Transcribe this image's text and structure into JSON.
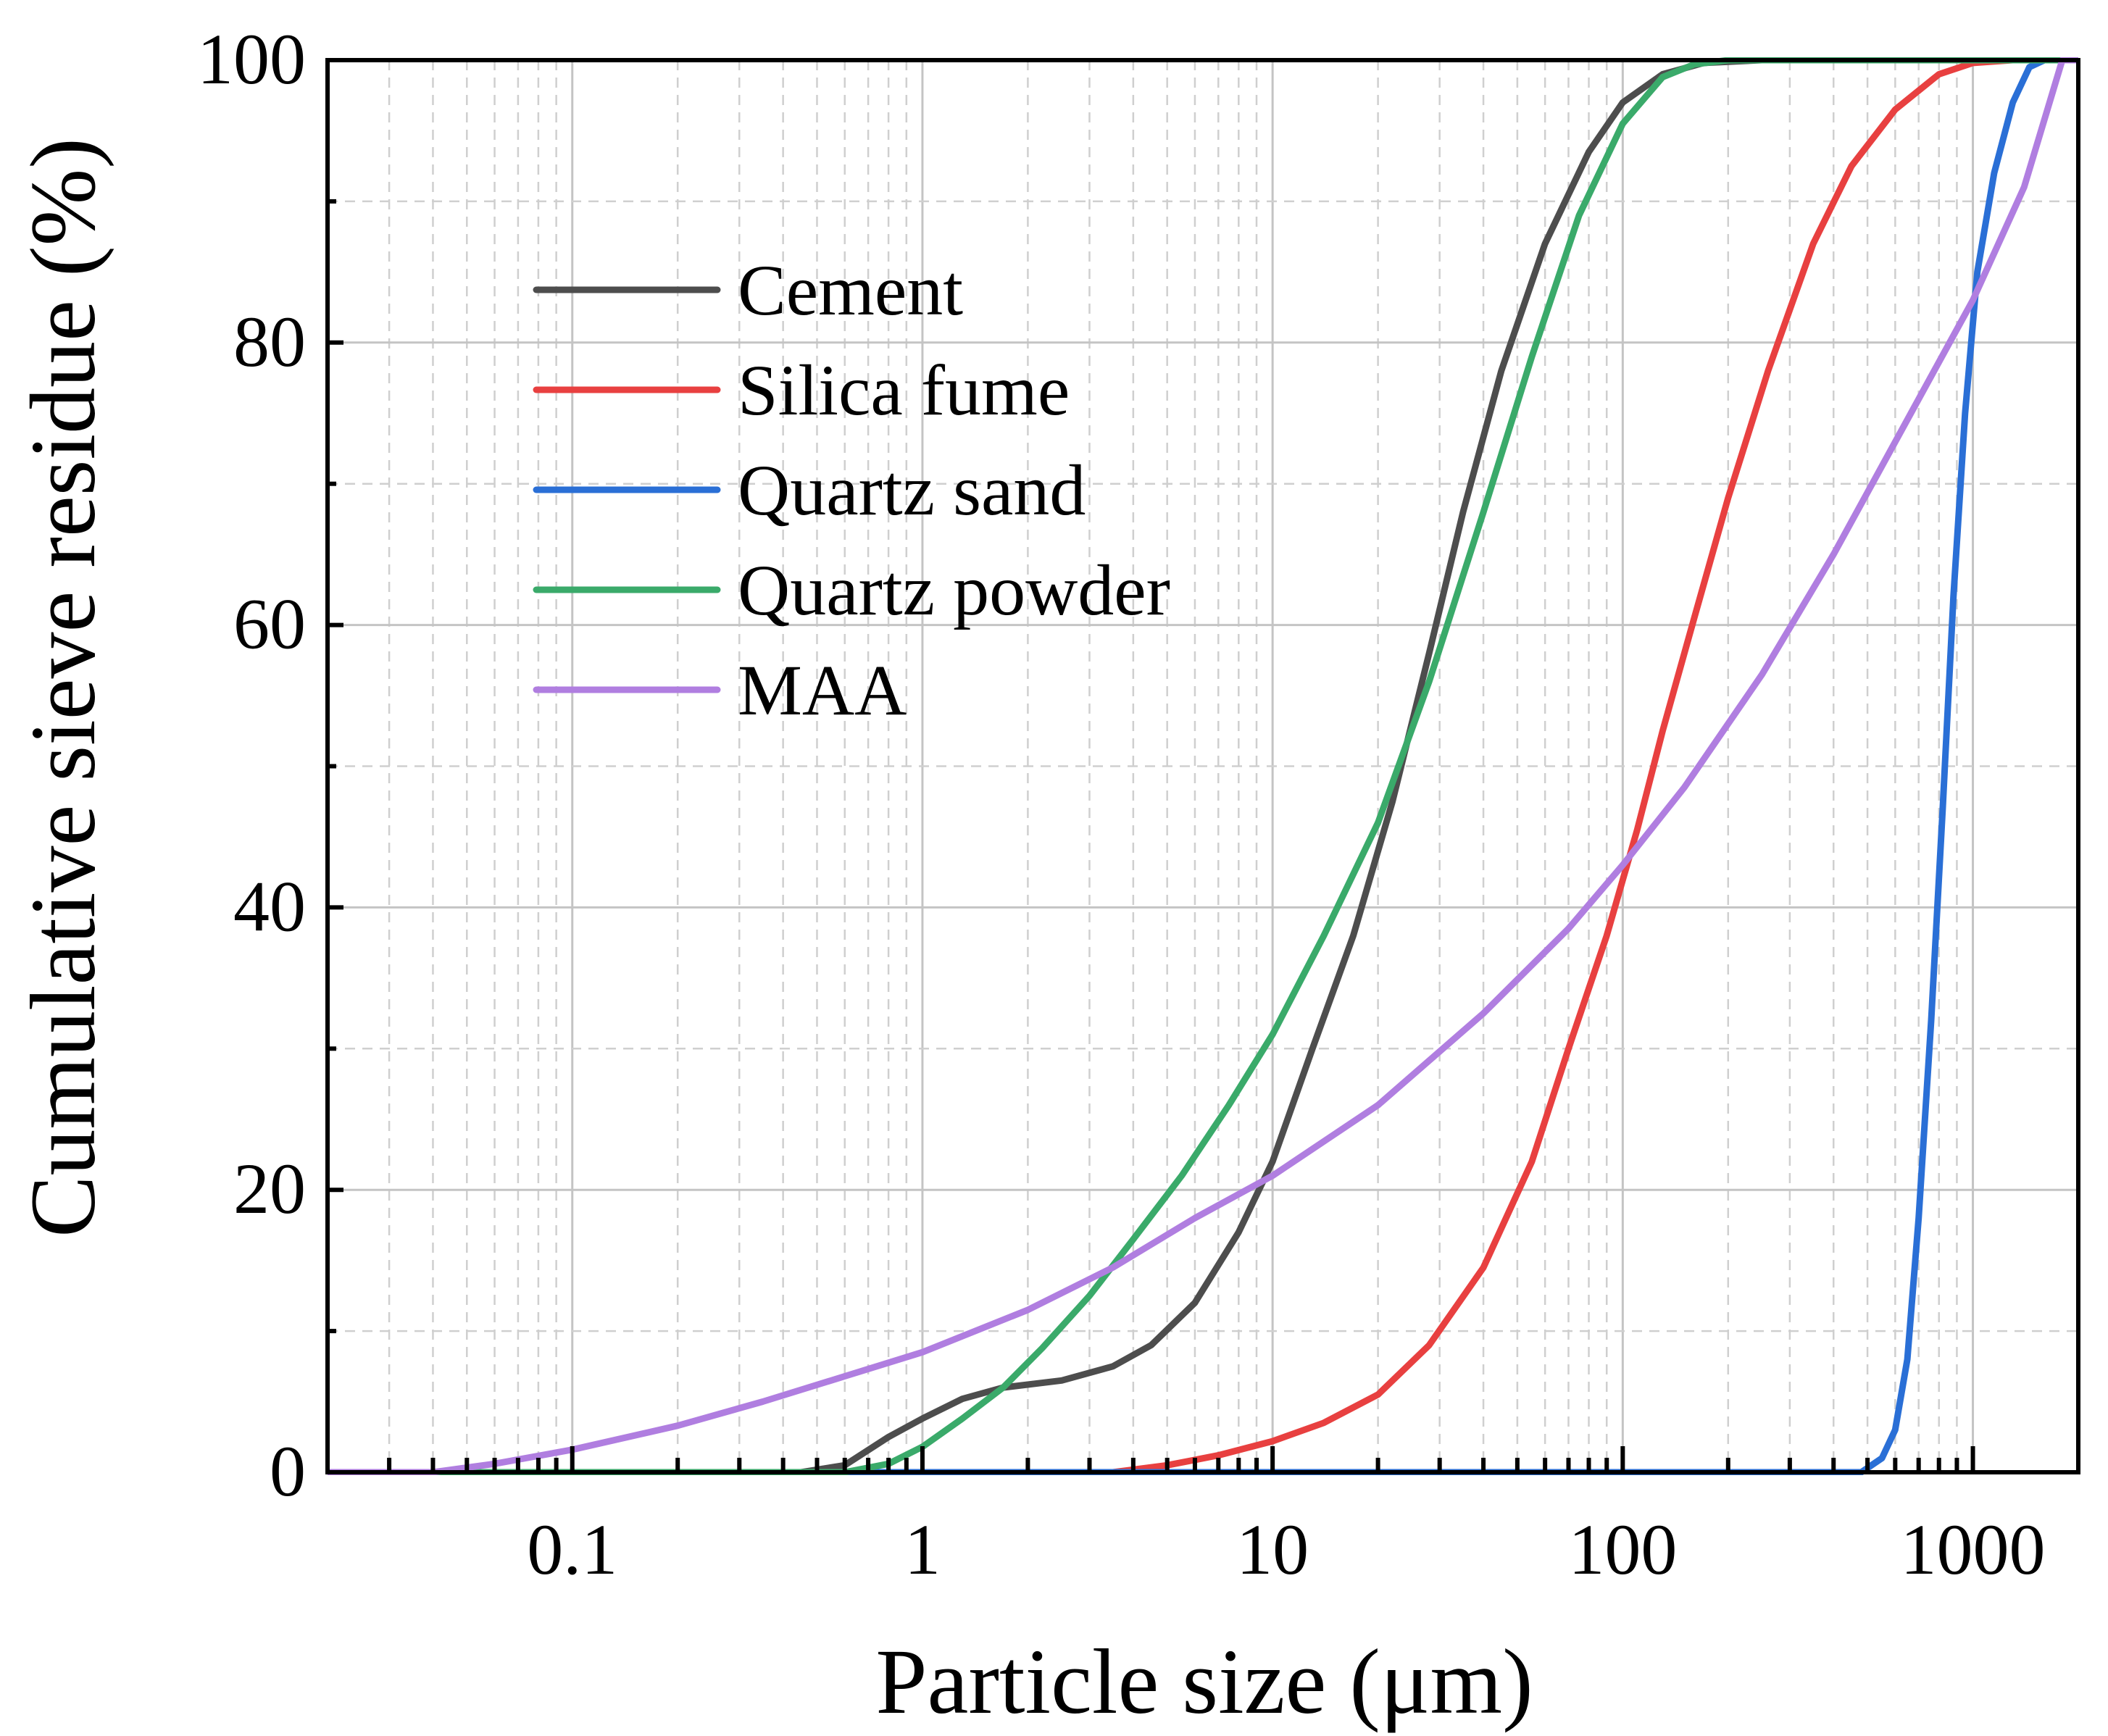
{
  "chart_data": {
    "type": "line",
    "title": "",
    "xlabel": "Particle size (μm)",
    "ylabel": "Cumulative sieve residue (%)",
    "xscale": "log",
    "xlim": [
      0.02,
      2000
    ],
    "ylim": [
      0,
      100
    ],
    "x_tick_values": [
      0.1,
      1,
      10,
      100,
      1000
    ],
    "x_tick_labels": [
      "0.1",
      "1",
      "10",
      "100",
      "1000"
    ],
    "y_tick_values": [
      0,
      20,
      40,
      60,
      80,
      100
    ],
    "y_tick_labels": [
      "0",
      "20",
      "40",
      "60",
      "80",
      "100"
    ],
    "grid": true,
    "legend_position": "upper-left",
    "series": [
      {
        "name": "Cement",
        "color": "#4d4d4d",
        "points": [
          [
            0.02,
            0
          ],
          [
            0.45,
            0
          ],
          [
            0.6,
            0.5
          ],
          [
            0.8,
            2.5
          ],
          [
            1.0,
            3.8
          ],
          [
            1.3,
            5.2
          ],
          [
            1.7,
            6.0
          ],
          [
            2.5,
            6.5
          ],
          [
            3.5,
            7.5
          ],
          [
            4.5,
            9.0
          ],
          [
            6.0,
            12.0
          ],
          [
            8.0,
            17.0
          ],
          [
            10.0,
            22.0
          ],
          [
            13.0,
            30.0
          ],
          [
            17.0,
            38.0
          ],
          [
            22.0,
            47.5
          ],
          [
            28.0,
            58.0
          ],
          [
            35.0,
            68.0
          ],
          [
            45.0,
            78.0
          ],
          [
            60.0,
            87.0
          ],
          [
            80.0,
            93.5
          ],
          [
            100.0,
            97.0
          ],
          [
            130.0,
            99.0
          ],
          [
            170.0,
            99.8
          ],
          [
            250.0,
            100
          ],
          [
            2000,
            100
          ]
        ]
      },
      {
        "name": "Silica fume",
        "color": "#e84040",
        "points": [
          [
            0.02,
            0
          ],
          [
            3.5,
            0
          ],
          [
            5.0,
            0.5
          ],
          [
            7.0,
            1.2
          ],
          [
            10.0,
            2.2
          ],
          [
            14.0,
            3.5
          ],
          [
            20.0,
            5.5
          ],
          [
            28.0,
            9.0
          ],
          [
            40.0,
            14.5
          ],
          [
            55.0,
            22.0
          ],
          [
            70.0,
            30.0
          ],
          [
            90.0,
            38.0
          ],
          [
            110.0,
            45.5
          ],
          [
            130.0,
            52.5
          ],
          [
            160.0,
            60.5
          ],
          [
            200.0,
            69.0
          ],
          [
            260.0,
            78.0
          ],
          [
            350.0,
            87.0
          ],
          [
            450.0,
            92.5
          ],
          [
            600.0,
            96.5
          ],
          [
            800.0,
            99.0
          ],
          [
            1000.0,
            99.8
          ],
          [
            1300,
            100
          ],
          [
            2000,
            100
          ]
        ]
      },
      {
        "name": "Quartz sand",
        "color": "#2a6fd6",
        "points": [
          [
            0.02,
            0
          ],
          [
            480,
            0
          ],
          [
            550,
            1.0
          ],
          [
            600,
            3.0
          ],
          [
            650,
            8.0
          ],
          [
            700,
            18.0
          ],
          [
            760,
            32.0
          ],
          [
            820,
            47.0
          ],
          [
            880,
            62.0
          ],
          [
            950,
            75.0
          ],
          [
            1030,
            85.0
          ],
          [
            1150,
            92.0
          ],
          [
            1300,
            97.0
          ],
          [
            1450,
            99.5
          ],
          [
            1600,
            100
          ],
          [
            2000,
            100
          ]
        ]
      },
      {
        "name": "Quartz powder",
        "color": "#3aaa6a",
        "points": [
          [
            0.02,
            0
          ],
          [
            0.6,
            0
          ],
          [
            0.8,
            0.6
          ],
          [
            1.0,
            1.8
          ],
          [
            1.3,
            3.8
          ],
          [
            1.7,
            6.0
          ],
          [
            2.2,
            8.8
          ],
          [
            3.0,
            12.5
          ],
          [
            4.0,
            16.5
          ],
          [
            5.5,
            21.0
          ],
          [
            7.5,
            26.0
          ],
          [
            10.0,
            31.0
          ],
          [
            14.0,
            38.0
          ],
          [
            20.0,
            46.0
          ],
          [
            28.0,
            56.0
          ],
          [
            40.0,
            68.0
          ],
          [
            55.0,
            79.0
          ],
          [
            75.0,
            89.0
          ],
          [
            100.0,
            95.5
          ],
          [
            130.0,
            98.8
          ],
          [
            160.0,
            99.7
          ],
          [
            200.0,
            100
          ],
          [
            2000,
            100
          ]
        ]
      },
      {
        "name": "MAA",
        "color": "#b07ee0",
        "points": [
          [
            0.02,
            0
          ],
          [
            0.04,
            0
          ],
          [
            0.06,
            0.6
          ],
          [
            0.1,
            1.6
          ],
          [
            0.2,
            3.3
          ],
          [
            0.35,
            5.0
          ],
          [
            0.6,
            6.8
          ],
          [
            1.0,
            8.5
          ],
          [
            2.0,
            11.5
          ],
          [
            3.5,
            14.5
          ],
          [
            6.0,
            18.0
          ],
          [
            10.0,
            21.0
          ],
          [
            20.0,
            26.0
          ],
          [
            40.0,
            32.5
          ],
          [
            70.0,
            38.5
          ],
          [
            100.0,
            43.0
          ],
          [
            150.0,
            48.5
          ],
          [
            250.0,
            56.5
          ],
          [
            400.0,
            65.0
          ],
          [
            700.0,
            76.0
          ],
          [
            1000.0,
            83.0
          ],
          [
            1400.0,
            91.0
          ],
          [
            1800.0,
            100
          ],
          [
            2000,
            100
          ]
        ]
      }
    ]
  }
}
